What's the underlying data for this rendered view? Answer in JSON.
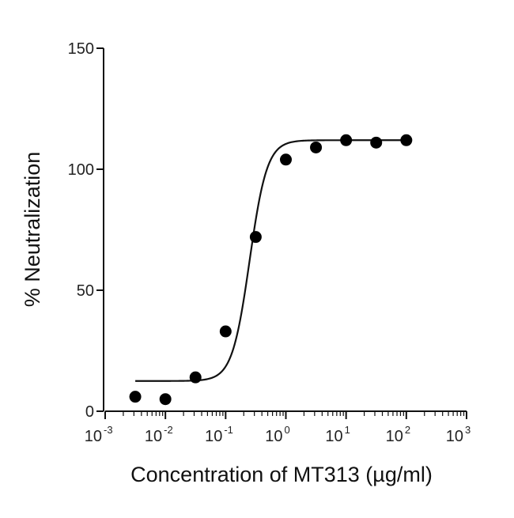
{
  "chart_data": {
    "type": "scatter",
    "title": "",
    "xlabel": "Concentration of MT313 (µg/ml)",
    "ylabel": "% Neutralization",
    "x_scale": "log",
    "xlim": [
      0.001,
      1000
    ],
    "ylim": [
      0,
      150
    ],
    "x_ticks": [
      {
        "value": 0.001,
        "base": "10",
        "exp": "-3"
      },
      {
        "value": 0.01,
        "base": "10",
        "exp": "-2"
      },
      {
        "value": 0.1,
        "base": "10",
        "exp": "-1"
      },
      {
        "value": 1,
        "base": "10",
        "exp": "0"
      },
      {
        "value": 10,
        "base": "10",
        "exp": "1"
      },
      {
        "value": 100,
        "base": "10",
        "exp": "2"
      },
      {
        "value": 1000,
        "base": "10",
        "exp": "3"
      }
    ],
    "y_ticks": [
      {
        "value": 0,
        "label": "0"
      },
      {
        "value": 50,
        "label": "50"
      },
      {
        "value": 100,
        "label": "100"
      },
      {
        "value": 150,
        "label": "150"
      }
    ],
    "grid": false,
    "series": [
      {
        "points": [
          {
            "x": 0.00316,
            "y": 6
          },
          {
            "x": 0.01,
            "y": 5
          },
          {
            "x": 0.0316,
            "y": 14
          },
          {
            "x": 0.1,
            "y": 33
          },
          {
            "x": 0.316,
            "y": 72
          },
          {
            "x": 1,
            "y": 104
          },
          {
            "x": 3.16,
            "y": 109
          },
          {
            "x": 10,
            "y": 112
          },
          {
            "x": 31.6,
            "y": 111
          },
          {
            "x": 100,
            "y": 112
          }
        ]
      }
    ],
    "fit": {
      "model": "four-parameter logistic",
      "bottom": 12.5,
      "top": 112,
      "ec50": 0.25,
      "hill": 3.0,
      "x_range": [
        0.00316,
        100
      ]
    }
  }
}
